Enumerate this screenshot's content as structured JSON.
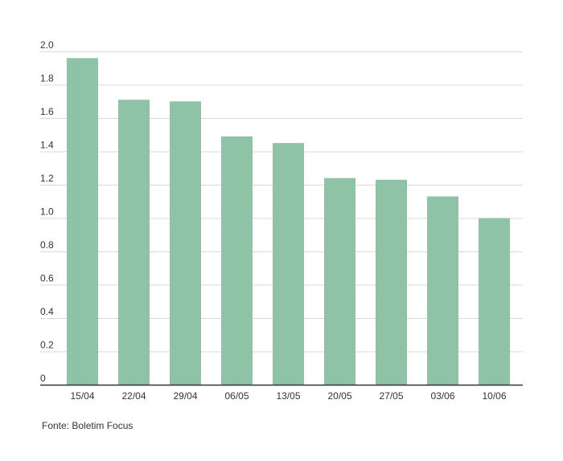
{
  "chart_data": {
    "type": "bar",
    "title": "",
    "xlabel": "",
    "ylabel": "",
    "categories": [
      "15/04",
      "22/04",
      "29/04",
      "06/05",
      "13/05",
      "20/05",
      "27/05",
      "03/06",
      "10/06"
    ],
    "values": [
      1.96,
      1.71,
      1.7,
      1.49,
      1.45,
      1.24,
      1.23,
      1.13,
      1.0
    ],
    "ylim": [
      0,
      2.0
    ],
    "yticks": [
      "0",
      "0.2",
      "0.4",
      "0.6",
      "0.8",
      "1.0",
      "1.2",
      "1.4",
      "1.6",
      "1.8",
      "2.0"
    ],
    "grid": true,
    "bar_color": "#8fc3a7",
    "axis_color": "#333333",
    "grid_color": "#d9d9d9"
  },
  "source": "Fonte: Boletim Focus"
}
